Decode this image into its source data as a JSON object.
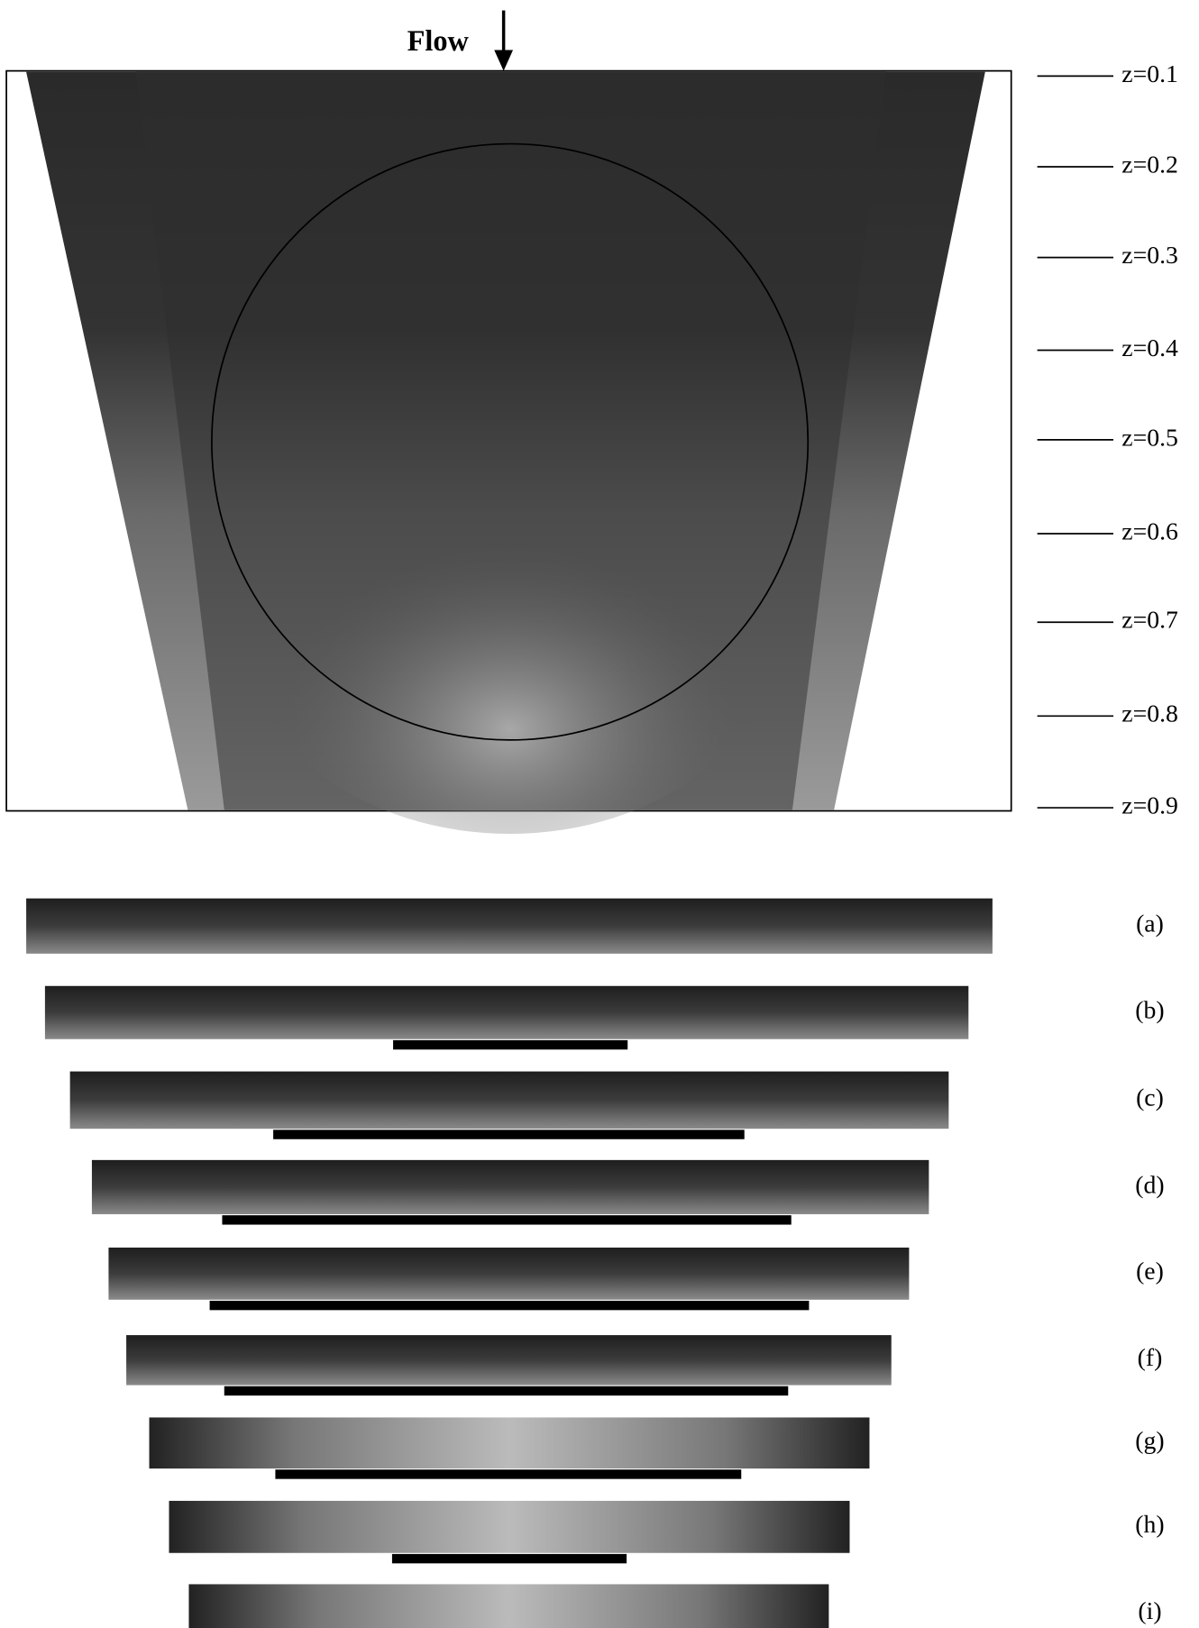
{
  "figure": {
    "flow_label": "Flow",
    "z_levels": [
      "z=0.1",
      "z=0.2",
      "z=0.3",
      "z=0.4",
      "z=0.5",
      "z=0.6",
      "z=0.7",
      "z=0.8",
      "z=0.9"
    ],
    "panels": [
      "(a)",
      "(b)",
      "(c)",
      "(d)",
      "(e)",
      "(f)",
      "(g)",
      "(h)",
      "(i)"
    ]
  }
}
